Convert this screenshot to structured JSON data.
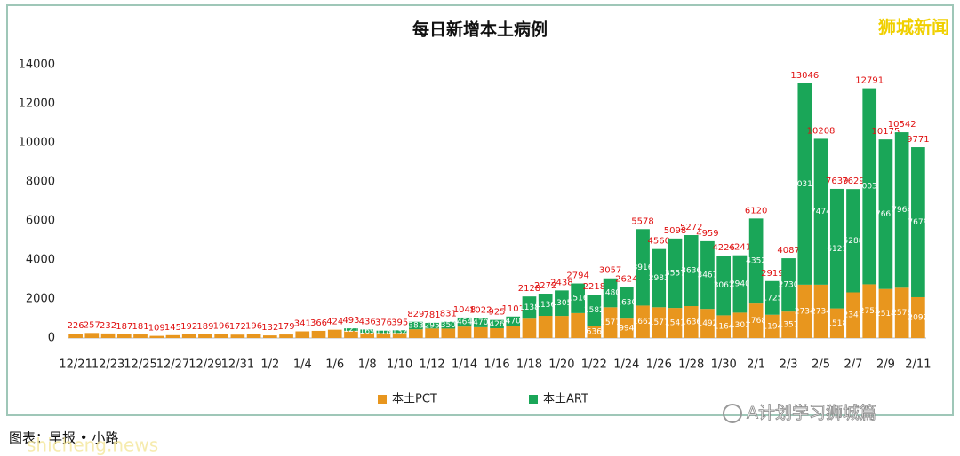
{
  "chart_data": {
    "type": "stacked_bar",
    "title": "每日新增本土病例",
    "watermark": "狮城新闻",
    "source": "图表：早报 • 小路",
    "footer_brand": "A计划学习狮城篇",
    "footer_site": "shicheng.news",
    "categories": [
      "12/21",
      null,
      "12/23",
      null,
      "12/25",
      null,
      "12/27",
      null,
      "12/29",
      null,
      "12/31",
      null,
      "1/2",
      null,
      "1/4",
      null,
      "1/6",
      null,
      "1/8",
      null,
      "1/10",
      null,
      "1/12",
      null,
      "1/14",
      null,
      "1/16",
      null,
      "1/18",
      null,
      "1/20",
      null,
      "1/22",
      null,
      "1/24",
      null,
      "1/26",
      null,
      "1/28",
      null,
      "1/30",
      null,
      "2/1",
      null,
      "2/3",
      null,
      "2/5",
      null,
      "2/7",
      null,
      "2/9",
      null,
      "2/11"
    ],
    "series": [
      {
        "name": "本土PCT",
        "color": "#e8961e",
        "values": [
          226,
          257,
          232,
          187,
          181,
          109,
          145,
          192,
          189,
          196,
          172,
          196,
          132,
          179,
          341,
          366,
          424,
          372,
          267,
          258,
          263,
          446,
          486,
          481,
          584,
          552,
          499,
          631,
          990,
          1136,
          1133,
          1278,
          636,
          1577,
          994,
          1662,
          1577,
          1541,
          1636,
          1492,
          1164,
          1301,
          1768,
          1194,
          1357,
          2734,
          2734,
          1518,
          2341,
          2753,
          2514,
          2578,
          2092
        ]
      },
      {
        "name": "本土ART",
        "color": "#1aa658",
        "values": [
          null,
          null,
          null,
          null,
          null,
          null,
          null,
          null,
          null,
          null,
          null,
          null,
          null,
          null,
          null,
          null,
          null,
          121,
          169,
          118,
          132,
          383,
          295,
          350,
          464,
          470,
          426,
          470,
          1138,
          1136,
          1305,
          1516,
          1582,
          1480,
          1630,
          3916,
          2983,
          3557,
          3636,
          3467,
          3062,
          2940,
          4352,
          1725,
          2730,
          10312,
          7474,
          6121,
          5288,
          10038,
          7661,
          7964,
          7679
        ]
      }
    ],
    "totals": [
      226,
      257,
      232,
      187,
      181,
      109,
      145,
      192,
      189,
      196,
      172,
      196,
      132,
      179,
      341,
      366,
      424,
      493,
      436,
      376,
      395,
      829,
      781,
      831,
      1048,
      1022,
      925,
      1101,
      2128,
      2272,
      2438,
      2794,
      2218,
      3057,
      2624,
      5578,
      4560,
      5098,
      5272,
      4959,
      4226,
      4241,
      6120,
      2919,
      4087,
      13046,
      10208,
      7639,
      7629,
      12791,
      10175,
      10542,
      9771
    ],
    "ylim": [
      0,
      14000
    ],
    "yticks": [
      0,
      2000,
      4000,
      6000,
      8000,
      10000,
      12000,
      14000
    ],
    "grid": false
  }
}
